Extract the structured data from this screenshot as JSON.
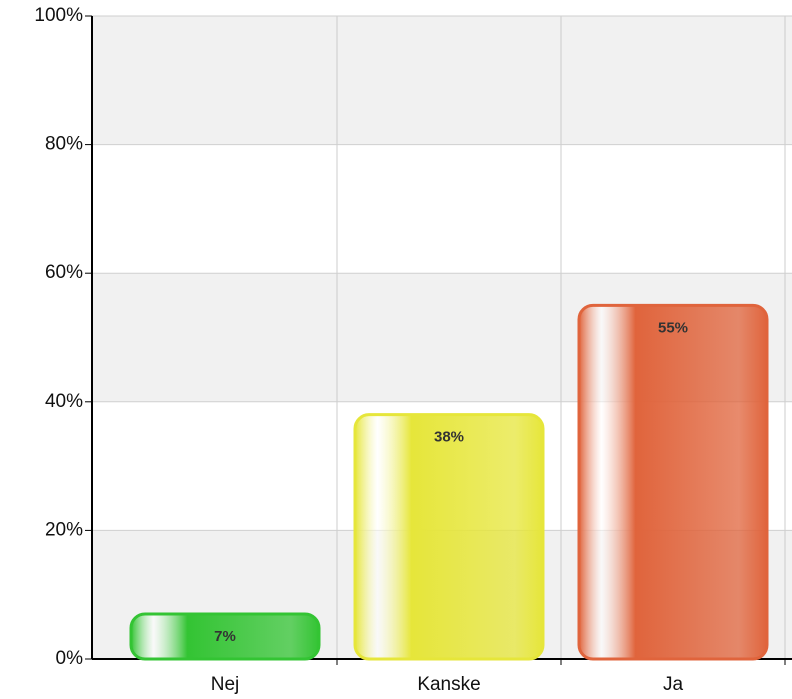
{
  "chart_data": {
    "type": "bar",
    "categories": [
      "Nej",
      "Kanske",
      "Ja"
    ],
    "values": [
      7,
      38,
      55
    ],
    "value_labels": [
      "7%",
      "38%",
      "55%"
    ],
    "colors": [
      "#33c433",
      "#e6e63a",
      "#e0643c"
    ],
    "ylim": [
      0,
      100
    ],
    "yticks": [
      {
        "value": 0,
        "label": "0%"
      },
      {
        "value": 20,
        "label": "20%"
      },
      {
        "value": 40,
        "label": "40%"
      },
      {
        "value": 60,
        "label": "60%"
      },
      {
        "value": 80,
        "label": "80%"
      },
      {
        "value": 100,
        "label": "100%"
      }
    ],
    "grid": true
  }
}
